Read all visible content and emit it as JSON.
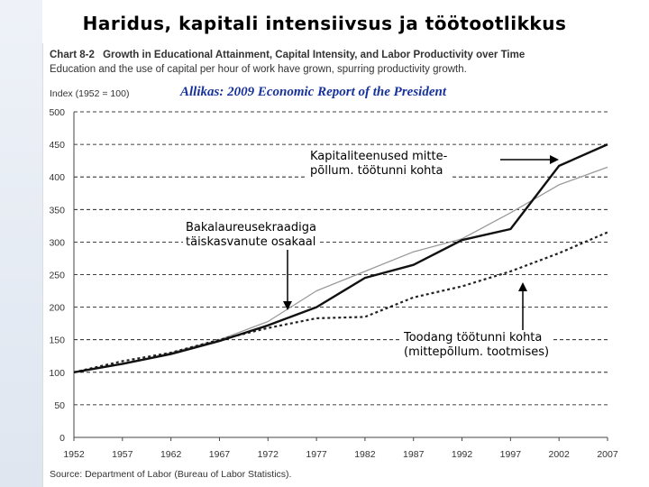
{
  "slide": {
    "title": "Haridus, kapitali intensiivsus ja töötootlikkus",
    "source_line": "Allikas: 2009 Economic Report of the President"
  },
  "figure": {
    "chart_label": "Chart 8-2",
    "title": "Growth in Educational Attainment, Capital Intensity, and Labor Productivity over Time",
    "subtitle": "Education and the use of capital per hour of work have grown, spurring productivity growth.",
    "source": "Source: Department of Labor (Bureau of Labor Statistics)."
  },
  "callouts": {
    "capital": "Kapitaliteenused mitte-\npõllum. töötunni kohta",
    "education": "Bakalaureusekraadiga\ntäiskasvanute osakaal",
    "productivity": "Toodang töötunni kohta\n(mittepõllum. tootmises)"
  },
  "colors": {
    "capital": "#111111",
    "education": "#9a9a9a",
    "productivity": "#222222",
    "grid": "#000000",
    "axis_text": "#333333",
    "source_line": "#17329b"
  },
  "chart_data": {
    "type": "line",
    "title": "Growth in Educational Attainment, Capital Intensity, and Labor Productivity over Time",
    "xlabel": "",
    "ylabel": "Index (1952 = 100)",
    "x": [
      1952,
      1957,
      1962,
      1967,
      1972,
      1977,
      1982,
      1987,
      1992,
      1997,
      2002,
      2007
    ],
    "xticks": [
      "1952",
      "1957",
      "1962",
      "1967",
      "1972",
      "1977",
      "1982",
      "1987",
      "1992",
      "1997",
      "2002",
      "2007"
    ],
    "ylim": [
      0,
      500
    ],
    "yticks": [
      0,
      50,
      100,
      150,
      200,
      250,
      300,
      350,
      400,
      450,
      500
    ],
    "grid": "horizontal dashed",
    "series": [
      {
        "name": "Kapitaliteenused mittepõllum. töötunni kohta",
        "style": "solid-thick",
        "values": [
          100,
          113,
          128,
          148,
          172,
          200,
          245,
          265,
          303,
          320,
          417,
          450
        ]
      },
      {
        "name": "Bakalaureusekraadiga täiskasvanute osakaal",
        "style": "solid-thin",
        "values": [
          100,
          112,
          130,
          150,
          178,
          225,
          255,
          285,
          305,
          345,
          388,
          415
        ]
      },
      {
        "name": "Toodang töötunni kohta (mittepõllum. tootmises)",
        "style": "dashed",
        "values": [
          100,
          117,
          130,
          150,
          168,
          183,
          185,
          215,
          232,
          255,
          283,
          315
        ]
      }
    ]
  }
}
